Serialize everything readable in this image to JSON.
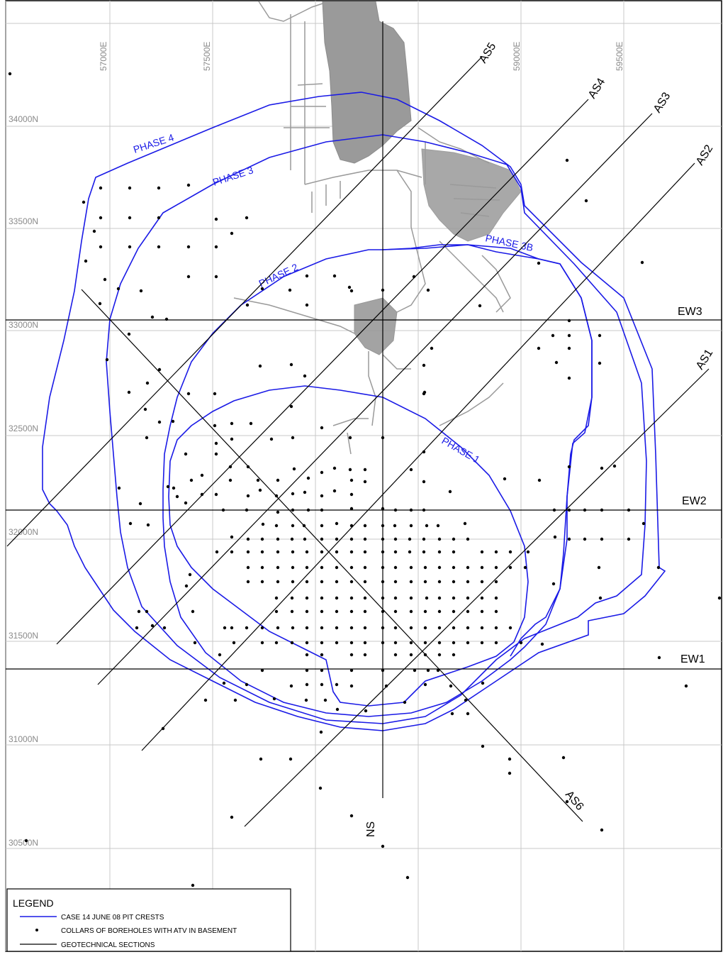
{
  "map": {
    "easting_labels": [
      "57000E",
      "57500E",
      "59000E",
      "59500E"
    ],
    "northing_labels": [
      "34000N",
      "33500N",
      "33000N",
      "32500N",
      "32000N",
      "31500N",
      "31000N",
      "30500N"
    ],
    "sections": {
      "ns": "NS",
      "ew1": "EW1",
      "ew2": "EW2",
      "ew3": "EW3",
      "as1": "AS1",
      "as2": "AS2",
      "as3": "AS3",
      "as4": "AS4",
      "as5": "AS5",
      "as6": "AS6"
    },
    "phases": {
      "phase1": "PHASE 1",
      "phase2": "PHASE 2",
      "phase3": "PHASE 3",
      "phase3b": "PHASE 3B",
      "phase4": "PHASE 4"
    },
    "colors": {
      "pit_crest": "#1a1ae6",
      "section": "#000000",
      "grid": "#c8c8c8",
      "infrastructure": "#9a9a9a"
    }
  },
  "legend": {
    "title": "LEGEND",
    "items": [
      {
        "symbol": "blue-line",
        "label": "CASE 14 JUNE 08 PIT CRESTS"
      },
      {
        "symbol": "dot",
        "label": "COLLARS OF BOREHOLES WITH ATV IN BASEMENT"
      },
      {
        "symbol": "black-line",
        "label": "GEOTECHNICAL SECTIONS"
      }
    ]
  }
}
